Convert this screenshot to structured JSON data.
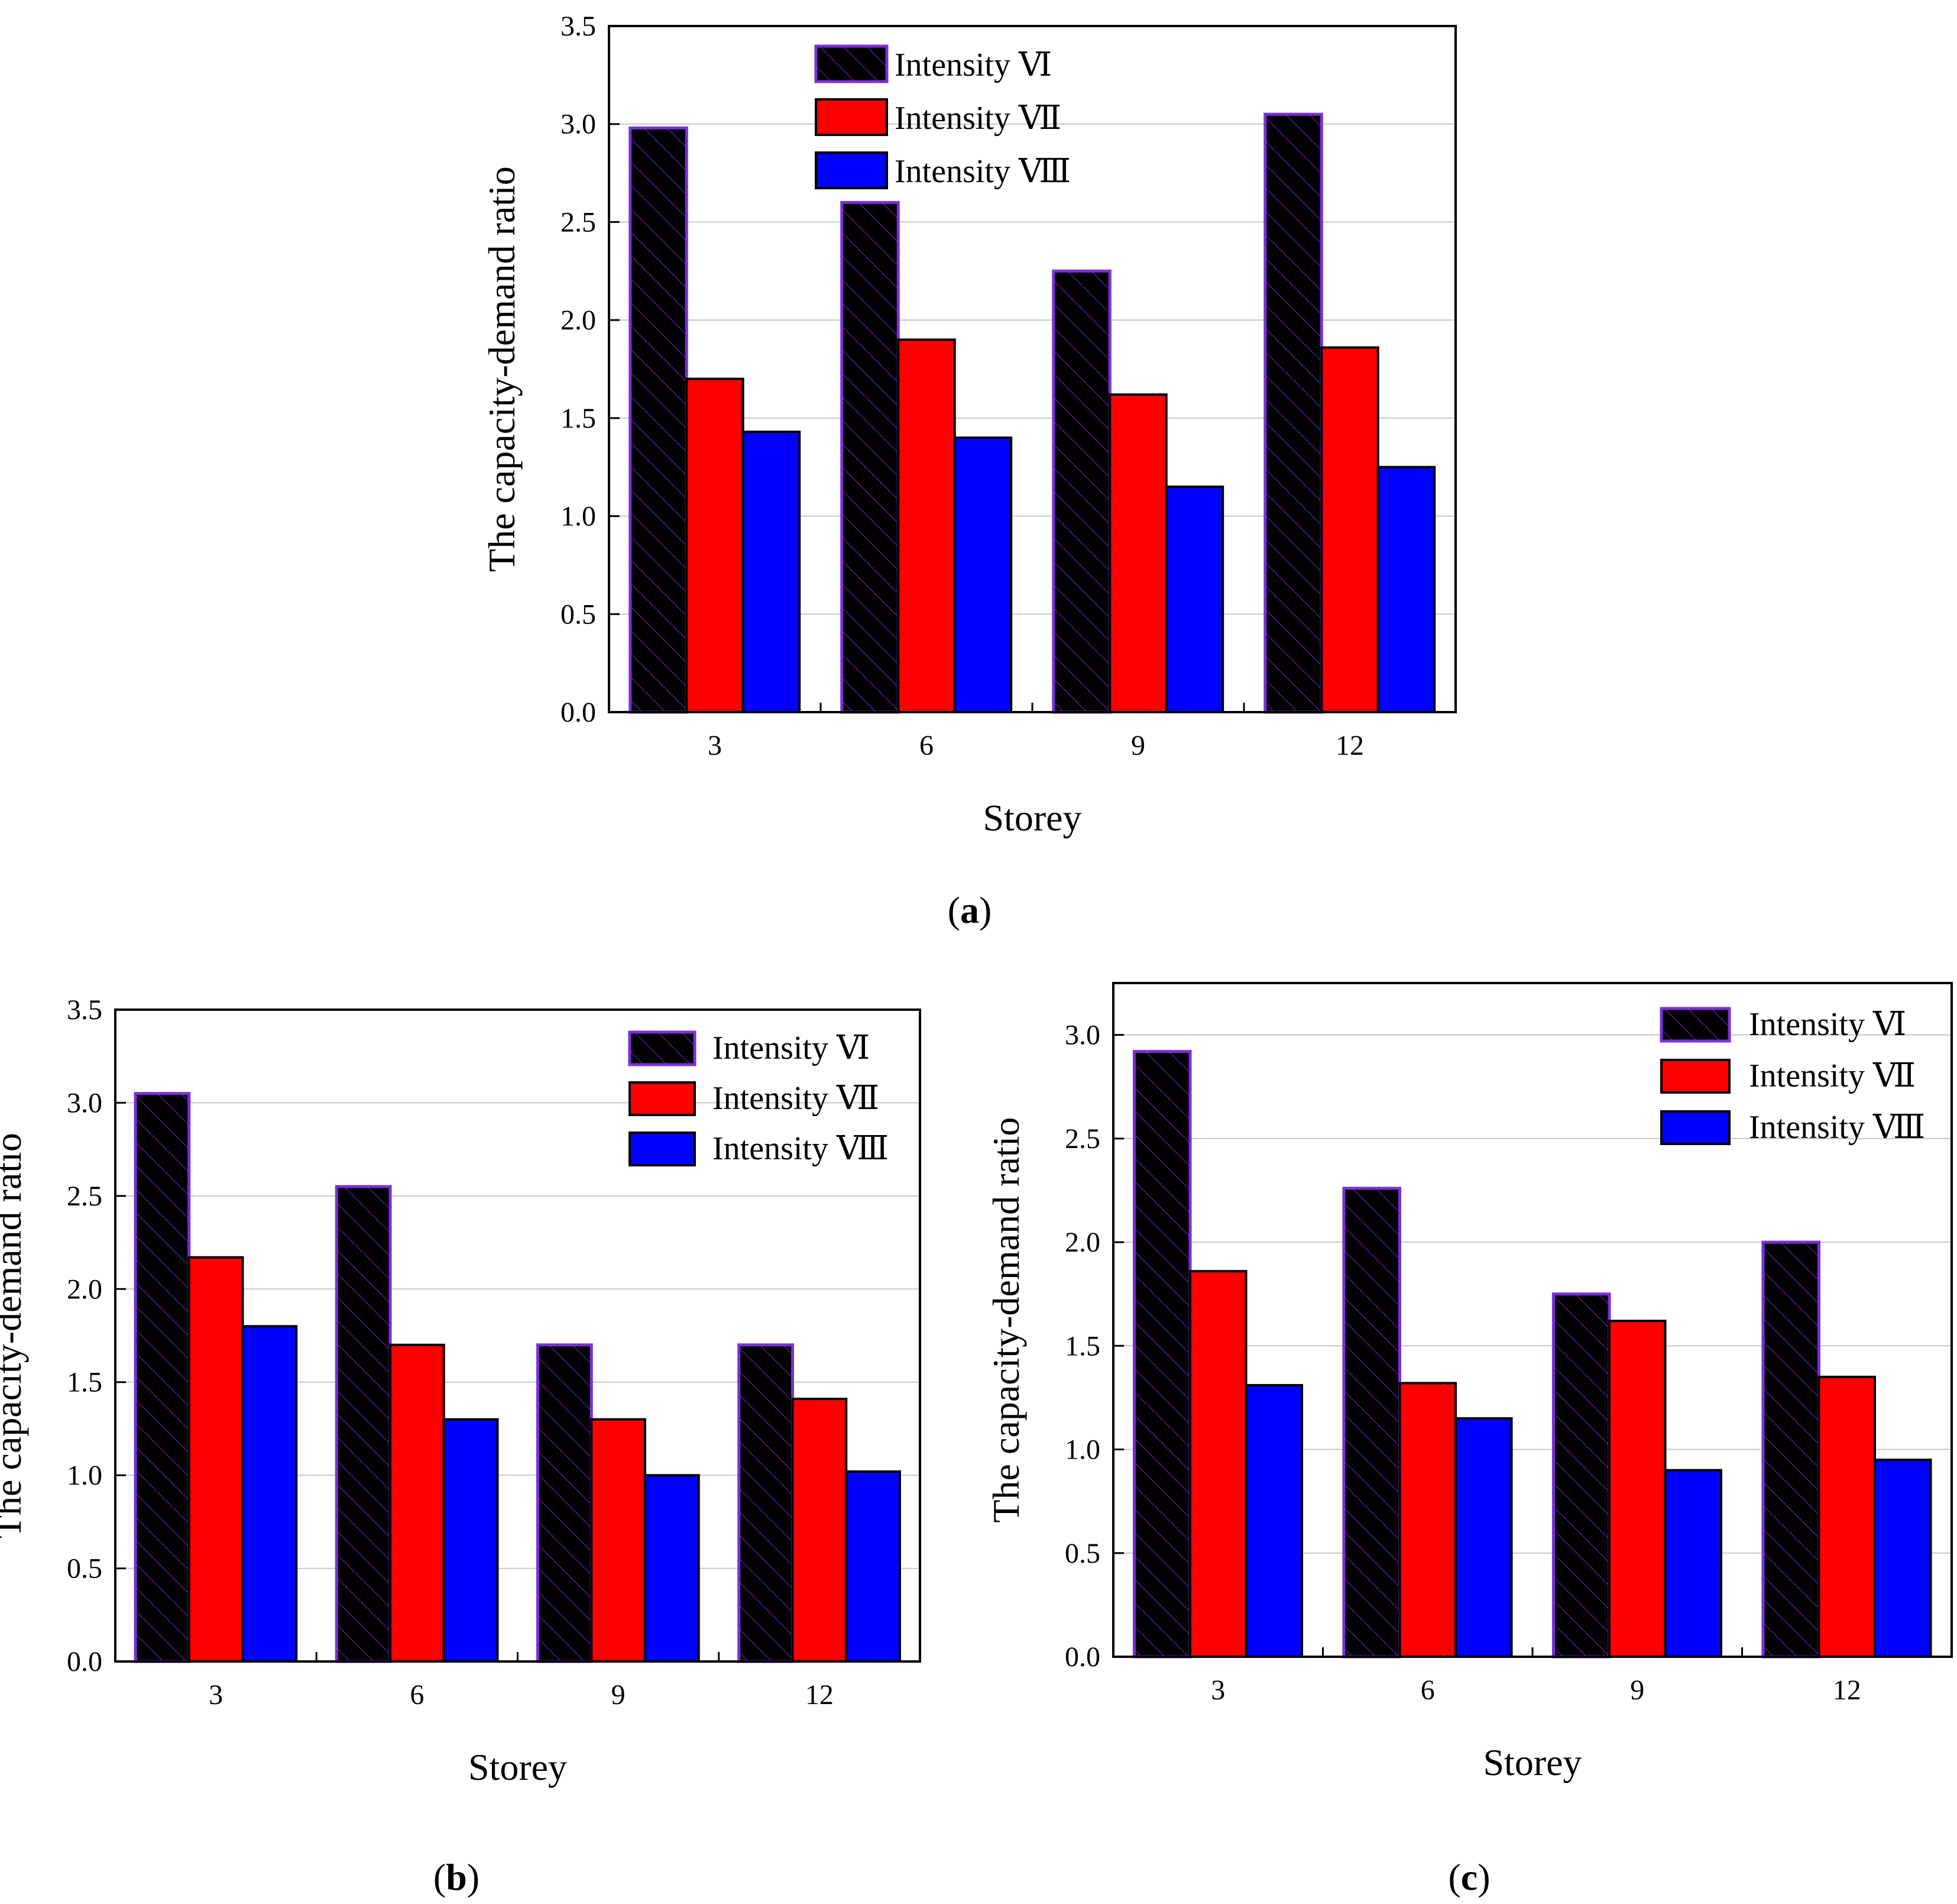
{
  "chart_data": [
    {
      "id": "a",
      "type": "bar",
      "panel_label": "(a)",
      "panel_letter": "a",
      "xlabel": "Storey",
      "ylabel": "The capacity-demand ratio",
      "categories": [
        "3",
        "6",
        "9",
        "12"
      ],
      "ylim": [
        0,
        3.5
      ],
      "yticks": [
        "0.0",
        "0.5",
        "1.0",
        "1.5",
        "2.0",
        "2.5",
        "3.0",
        "3.5"
      ],
      "grid": true,
      "legend_position": "top-center",
      "series": [
        {
          "name": "Intensity Ⅵ",
          "color": "#000000",
          "values": [
            2.98,
            2.6,
            2.25,
            3.05
          ]
        },
        {
          "name": "Intensity Ⅶ",
          "color": "#ff0000",
          "values": [
            1.7,
            1.9,
            1.62,
            1.86
          ]
        },
        {
          "name": "Intensity Ⅷ",
          "color": "#0000ff",
          "values": [
            1.43,
            1.4,
            1.15,
            1.25
          ]
        }
      ]
    },
    {
      "id": "b",
      "type": "bar",
      "panel_label": "(b)",
      "panel_letter": "b",
      "xlabel": "Storey",
      "ylabel": "The capacity-demand ratio",
      "categories": [
        "3",
        "6",
        "9",
        "12"
      ],
      "ylim": [
        0,
        3.5
      ],
      "yticks": [
        "0.0",
        "0.5",
        "1.0",
        "1.5",
        "2.0",
        "2.5",
        "3.0",
        "3.5"
      ],
      "grid": true,
      "legend_position": "top-right",
      "series": [
        {
          "name": "Intensity Ⅵ",
          "color": "#000000",
          "values": [
            3.05,
            2.55,
            1.7,
            1.7
          ]
        },
        {
          "name": "Intensity Ⅶ",
          "color": "#ff0000",
          "values": [
            2.17,
            1.7,
            1.3,
            1.41
          ]
        },
        {
          "name": "Intensity Ⅷ",
          "color": "#0000ff",
          "values": [
            1.8,
            1.3,
            1.0,
            1.02
          ]
        }
      ]
    },
    {
      "id": "c",
      "type": "bar",
      "panel_label": "(c)",
      "panel_letter": "c",
      "xlabel": "Storey",
      "ylabel": "The capacity-demand ratio",
      "categories": [
        "3",
        "6",
        "9",
        "12"
      ],
      "ylim": [
        0,
        3.25
      ],
      "yticks": [
        "0.0",
        "0.5",
        "1.0",
        "1.5",
        "2.0",
        "2.5",
        "3.0"
      ],
      "grid": true,
      "legend_position": "top-right",
      "series": [
        {
          "name": "Intensity Ⅵ",
          "color": "#000000",
          "values": [
            2.92,
            2.26,
            1.75,
            2.0
          ]
        },
        {
          "name": "Intensity Ⅶ",
          "color": "#ff0000",
          "values": [
            1.86,
            1.32,
            1.62,
            1.35
          ]
        },
        {
          "name": "Intensity Ⅷ",
          "color": "#0000ff",
          "values": [
            1.31,
            1.15,
            0.9,
            0.95
          ]
        }
      ]
    }
  ]
}
